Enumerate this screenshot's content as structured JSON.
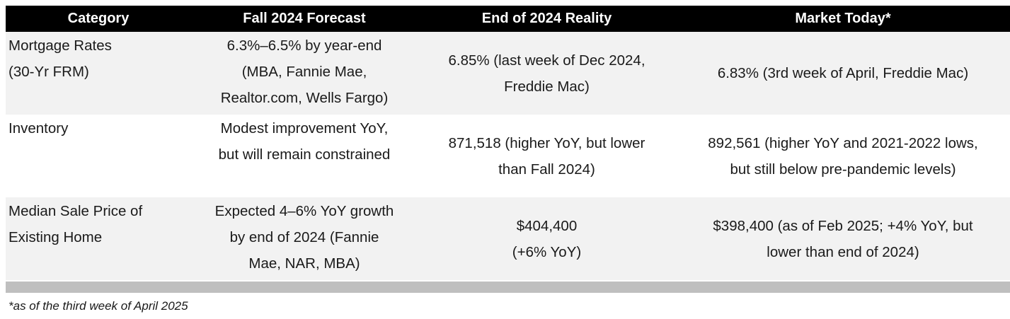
{
  "table": {
    "header": [
      "Category",
      "Fall 2024 Forecast",
      "End of 2024 Reality",
      "Market Today*"
    ],
    "rows": [
      [
        [
          "Mortgage Rates",
          "(30-Yr FRM)"
        ],
        [
          "6.3%–6.5% by year-end",
          "(MBA, Fannie Mae,",
          "Realtor.com, Wells Fargo)"
        ],
        [
          "6.85% (last week of Dec 2024,",
          "Freddie Mac)"
        ],
        [
          "6.83% (3rd week of April, Freddie Mac)"
        ]
      ],
      [
        [
          "Inventory"
        ],
        [
          "Modest improvement YoY,",
          "but will remain constrained"
        ],
        [
          "871,518 (higher YoY, but lower",
          "than Fall 2024)"
        ],
        [
          "892,561 (higher YoY and 2021-2022 lows,",
          "but still below pre-pandemic levels)"
        ]
      ],
      [
        [
          "Median Sale Price of",
          "Existing Home"
        ],
        [
          "Expected 4–6% YoY growth",
          "by end of 2024 (Fannie",
          "Mae, NAR, MBA)"
        ],
        [
          "$404,400",
          "(+6% YoY)"
        ],
        [
          "$398,400 (as of Feb 2025; +4% YoY, but",
          "lower than end of 2024)"
        ]
      ]
    ]
  },
  "footnote": "*as of the third week of April 2025"
}
